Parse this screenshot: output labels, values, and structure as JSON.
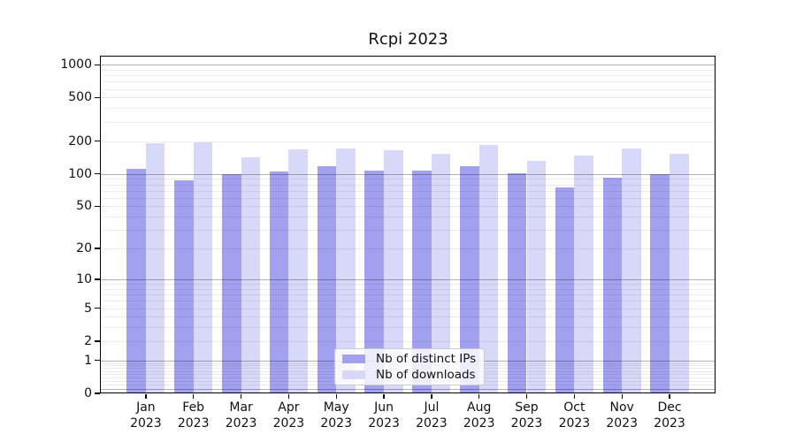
{
  "title": "Rcpi 2023",
  "colors": {
    "distinct_ips_bar": "#a1a1ef",
    "downloads_bar": "#d8d8f8",
    "axis": "#000000",
    "major_grid": "rgba(0,0,0,0.30)",
    "minor_grid": "rgba(0,0,0,0.07)",
    "text": "#111111",
    "legend_border": "#cbcbcb"
  },
  "chart_data": {
    "type": "bar",
    "title": "Rcpi 2023",
    "categories": [
      "Jan 2023",
      "Feb 2023",
      "Mar 2023",
      "Apr 2023",
      "May 2023",
      "Jun 2023",
      "Jul 2023",
      "Aug 2023",
      "Sep 2023",
      "Oct 2023",
      "Nov 2023",
      "Dec 2023"
    ],
    "series": [
      {
        "name": "Nb of distinct IPs",
        "color": "#a1a1ef",
        "values": [
          111,
          87,
          100,
          105,
          118,
          108,
          107,
          117,
          101,
          75,
          92,
          100
        ]
      },
      {
        "name": "Nb of downloads",
        "color": "#d8d8f8",
        "values": [
          190,
          195,
          143,
          169,
          172,
          164,
          153,
          184,
          132,
          147,
          172,
          154
        ]
      }
    ],
    "xlabel": "",
    "ylabel": "",
    "yscale": "symlog",
    "yticks": [
      0,
      1,
      2,
      5,
      10,
      20,
      50,
      100,
      200,
      500,
      1000
    ],
    "ylim": [
      0,
      1200
    ],
    "grid": "horizontal",
    "legend_position": "lower-center-inside"
  }
}
